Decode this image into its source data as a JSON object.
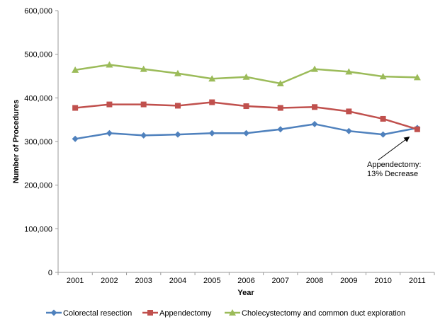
{
  "chart_data": {
    "type": "line",
    "title": "",
    "xlabel": "Year",
    "ylabel": "Number of Procedures",
    "ylim": [
      0,
      600000
    ],
    "y_tick_interval": 100000,
    "y_tick_labels": [
      "0",
      "100,000",
      "200,000",
      "300,000",
      "400,000",
      "500,000",
      "600,000"
    ],
    "categories": [
      "2001",
      "2002",
      "2003",
      "2004",
      "2005",
      "2006",
      "2007",
      "2008",
      "2009",
      "2010",
      "2011"
    ],
    "grid": false,
    "legend_position": "bottom",
    "series": [
      {
        "name": "Colorectal resection",
        "color": "#4F81BD",
        "marker": "diamond",
        "values": [
          306000,
          319000,
          314000,
          316000,
          319000,
          319000,
          328000,
          340000,
          324000,
          316000,
          331000
        ]
      },
      {
        "name": "Appendectomy",
        "color": "#C0504D",
        "marker": "square",
        "values": [
          377000,
          385000,
          385000,
          382000,
          390000,
          381000,
          377000,
          379000,
          369000,
          352000,
          328000
        ]
      },
      {
        "name": "Cholecystectomy and common duct exploration",
        "color": "#9BBB59",
        "marker": "triangle",
        "values": [
          464000,
          476000,
          466000,
          456000,
          444000,
          448000,
          433000,
          466000,
          460000,
          449000,
          447000
        ]
      }
    ],
    "annotation": {
      "line1": "Appendectomy:",
      "line2": "13% Decrease"
    }
  },
  "colors": {
    "axis": "#9a9a9a",
    "annotation_arrow": "#000000",
    "text": "#000000"
  }
}
